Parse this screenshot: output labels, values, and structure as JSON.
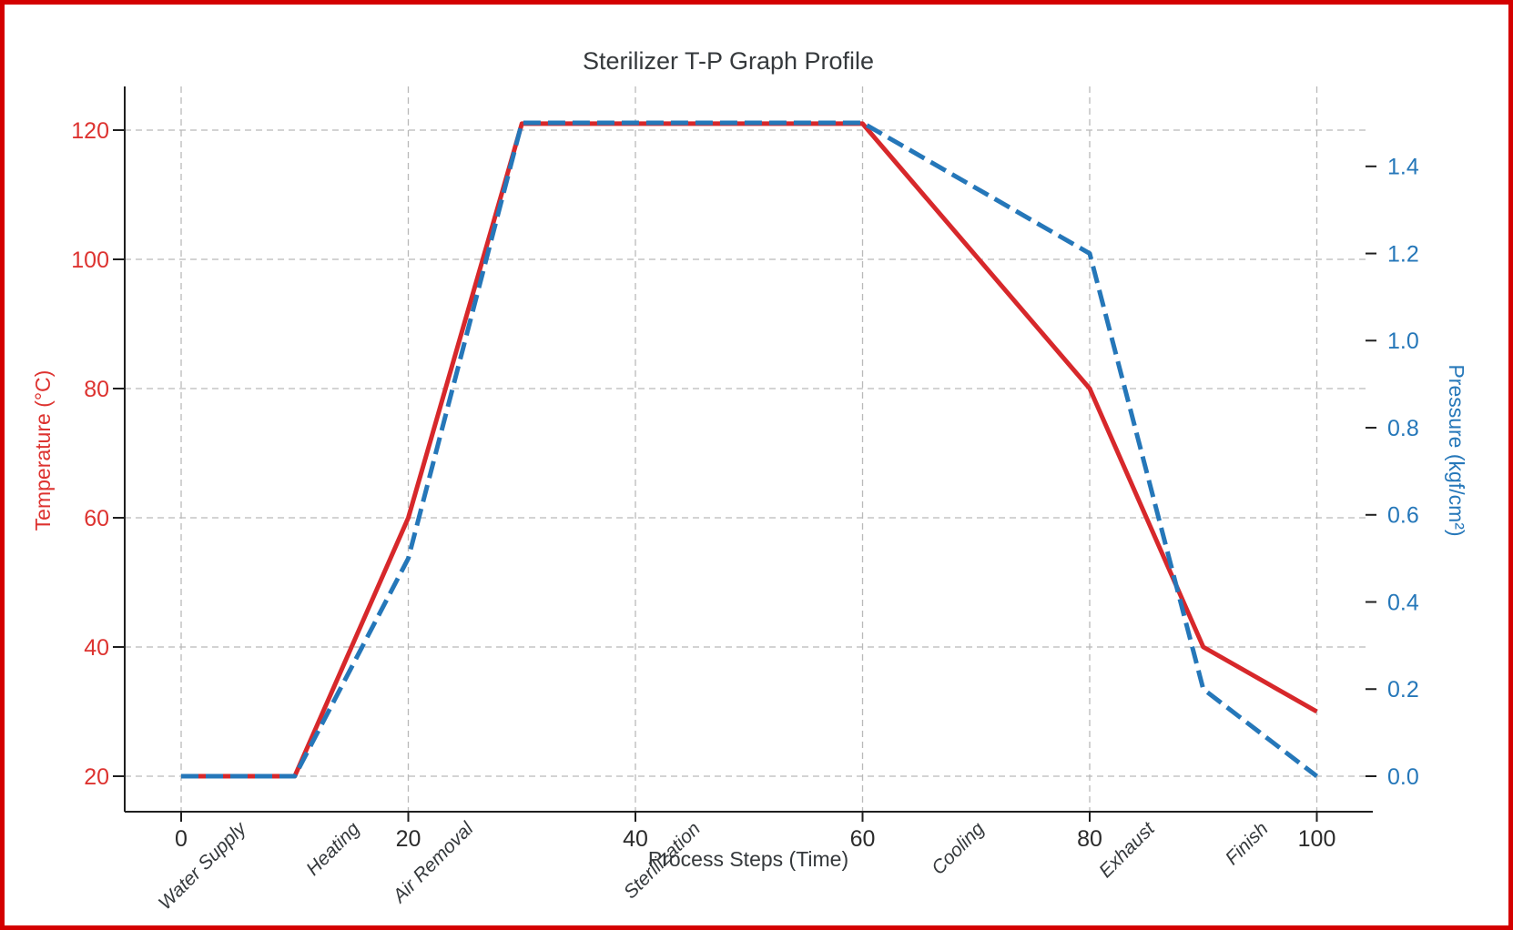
{
  "chart_data": {
    "type": "line",
    "title": "Sterilizer T-P Graph Profile",
    "xlabel": "Process Steps (Time)",
    "ylabel_left": "Temperature (°C)",
    "ylabel_right": "Pressure (kgf/cm²)",
    "x": [
      0,
      10,
      20,
      30,
      60,
      80,
      90,
      100
    ],
    "series": [
      {
        "name": "Temperature",
        "axis": "left",
        "style": "solid",
        "values": [
          20,
          20,
          60,
          121,
          121,
          80,
          40,
          30
        ]
      },
      {
        "name": "Pressure",
        "axis": "right",
        "style": "dashed",
        "values": [
          0.0,
          0.0,
          0.5,
          1.5,
          1.5,
          1.2,
          0.2,
          0.0
        ]
      }
    ],
    "x_ticks": [
      {
        "value": 0,
        "label": "0"
      },
      {
        "value": 20,
        "label": "20"
      },
      {
        "value": 40,
        "label": "40"
      },
      {
        "value": 60,
        "label": "60"
      },
      {
        "value": 80,
        "label": "80"
      },
      {
        "value": 100,
        "label": "100"
      }
    ],
    "left_ticks": [
      {
        "value": 20,
        "label": "20"
      },
      {
        "value": 40,
        "label": "40"
      },
      {
        "value": 60,
        "label": "60"
      },
      {
        "value": 80,
        "label": "80"
      },
      {
        "value": 100,
        "label": "100"
      },
      {
        "value": 120,
        "label": "120"
      }
    ],
    "right_ticks": [
      {
        "value": 0.0,
        "label": "0.0"
      },
      {
        "value": 0.2,
        "label": "0.2"
      },
      {
        "value": 0.4,
        "label": "0.4"
      },
      {
        "value": 0.6,
        "label": "0.6"
      },
      {
        "value": 0.8,
        "label": "0.8"
      },
      {
        "value": 1.0,
        "label": "1.0"
      },
      {
        "value": 1.2,
        "label": "1.2"
      },
      {
        "value": 1.4,
        "label": "1.4"
      }
    ],
    "step_labels": [
      {
        "label": "Water Supply",
        "x": 5
      },
      {
        "label": "Heating",
        "x": 15
      },
      {
        "label": "Air Removal",
        "x": 25
      },
      {
        "label": "Sterilization",
        "x": 45
      },
      {
        "label": "Cooling",
        "x": 70
      },
      {
        "label": "Exhaust",
        "x": 85
      },
      {
        "label": "Finish",
        "x": 95
      }
    ],
    "xlim": [
      -5,
      105
    ],
    "ylim_left": [
      15,
      127
    ],
    "ylim_right": [
      -0.08,
      1.58
    ],
    "grid": true,
    "legend": "none",
    "colors": {
      "temperature_line": "#d7282b",
      "temperature_text": "#dd3330",
      "pressure_line": "#2577b9",
      "pressure_text": "#2577b9",
      "dark_text": "#35393c",
      "grid_line": "#b9b9b9",
      "spine": "#1f1f1f",
      "frame_border": "#d40000"
    }
  }
}
